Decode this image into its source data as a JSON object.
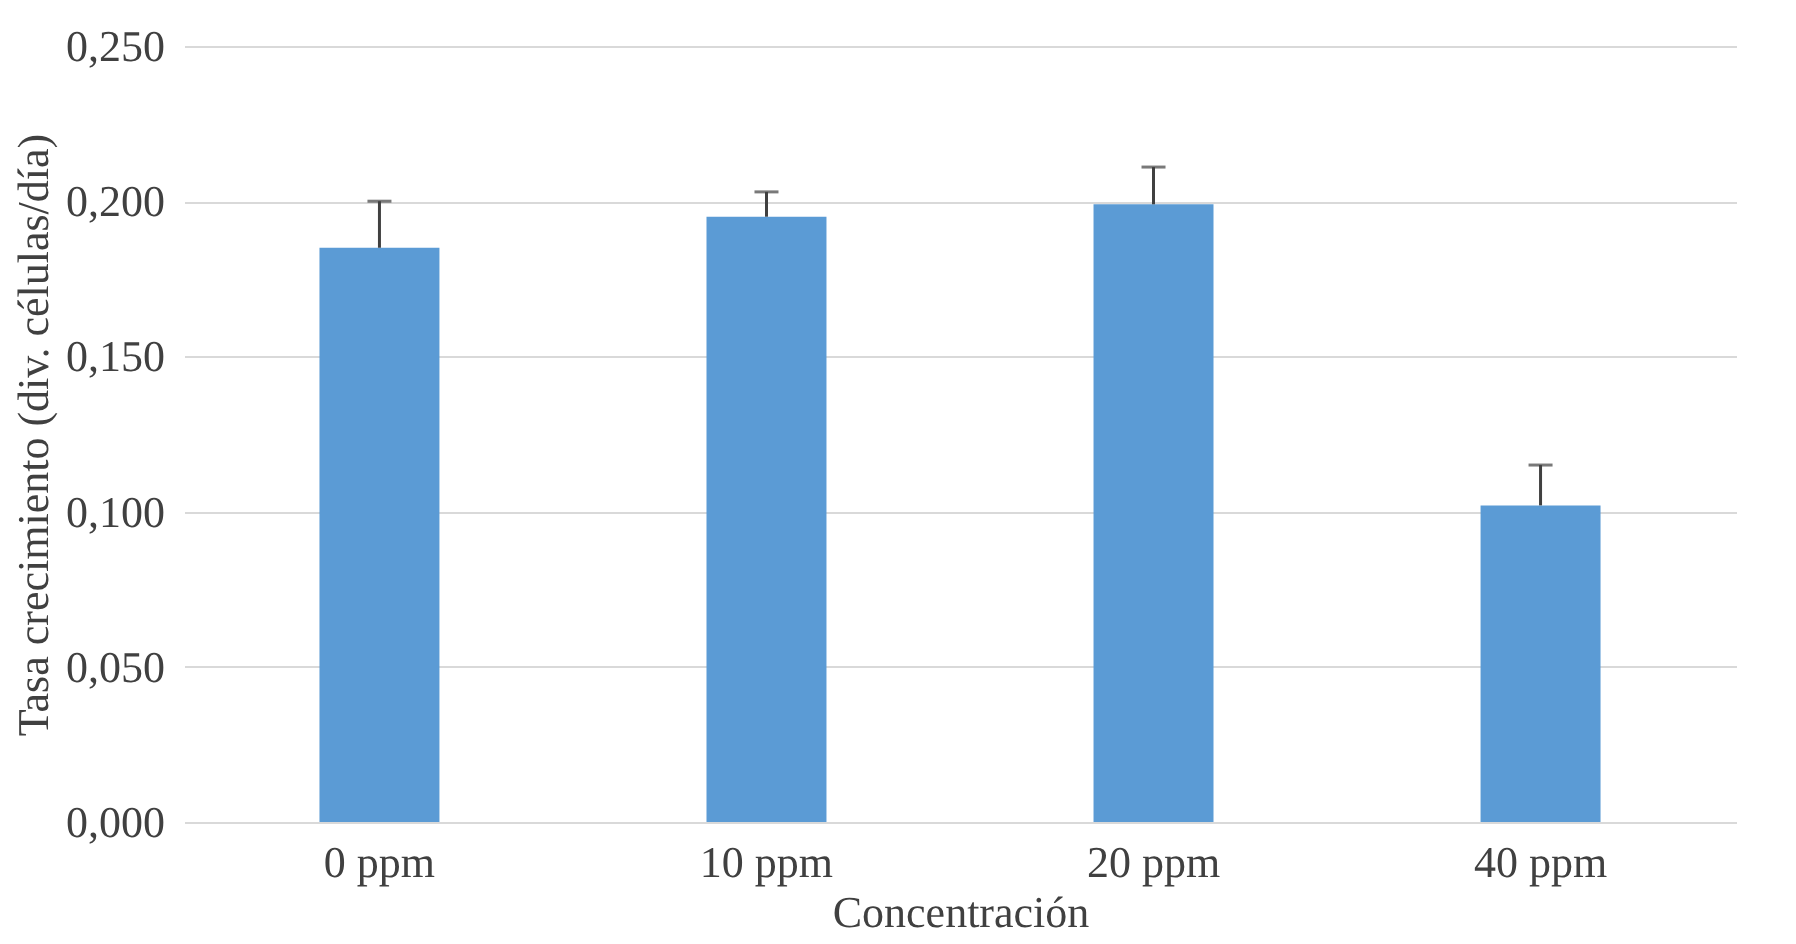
{
  "chart_data": {
    "type": "bar",
    "xlabel": "Concentración",
    "ylabel": "Tasa crecimiento (div. células/día)",
    "categories": [
      "0 ppm",
      "10 ppm",
      "20 ppm",
      "40 ppm"
    ],
    "values": [
      0.185,
      0.195,
      0.199,
      0.102
    ],
    "errors": [
      0.015,
      0.008,
      0.012,
      0.013
    ],
    "color": "#5b9bd5",
    "ylim": [
      0,
      0.25
    ],
    "yticks": [
      {
        "value": 0,
        "label": "0,000"
      },
      {
        "value": 0.05,
        "label": "0,050"
      },
      {
        "value": 0.1,
        "label": "0,100"
      },
      {
        "value": 0.15,
        "label": "0,150"
      },
      {
        "value": 0.2,
        "label": "0,200"
      },
      {
        "value": 0.25,
        "label": "0,250"
      }
    ],
    "grid": "y"
  }
}
